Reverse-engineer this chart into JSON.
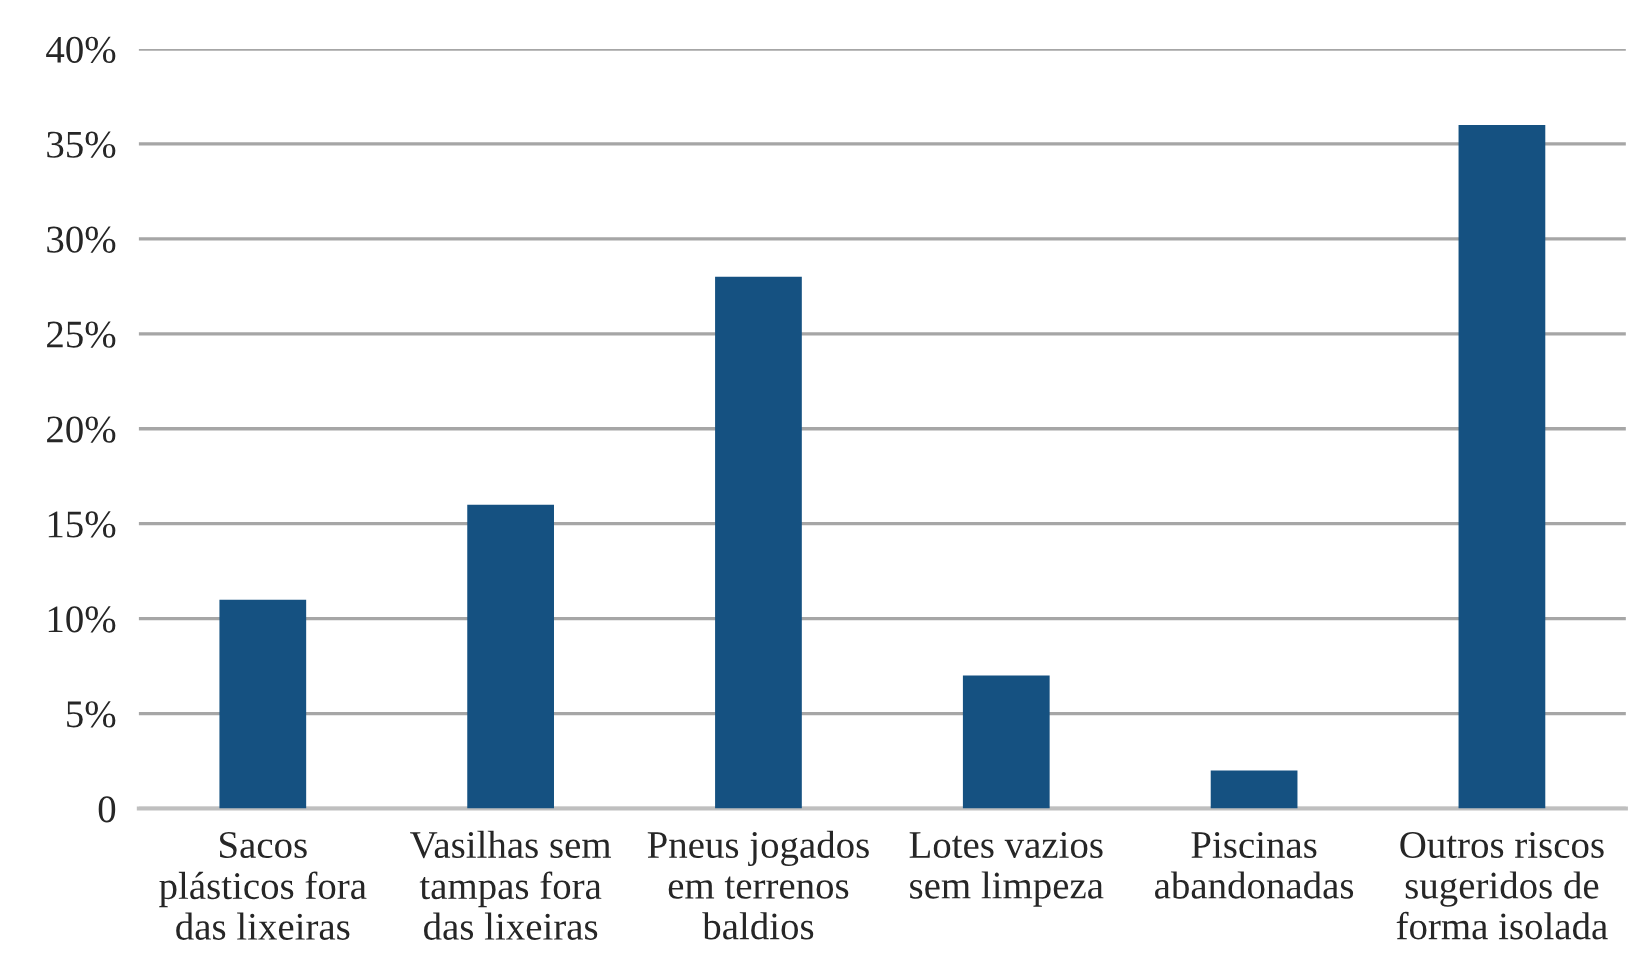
{
  "chart_data": {
    "type": "bar",
    "categories": [
      "Sacos\nplásticos fora\ndas lixeiras",
      "Vasilhas sem\ntampas fora\ndas lixeiras",
      "Pneus jogados\nem terrenos\nbaldios",
      "Lotes vazios\nsem limpeza",
      "Piscinas\nabandonadas",
      "Outros riscos\nsugeridos de\nforma isolada"
    ],
    "values": [
      11,
      16,
      28,
      7,
      2,
      36
    ],
    "color": "#155181",
    "ylim": [
      0,
      40
    ],
    "yticks": [
      {
        "value": 0,
        "label": "0"
      },
      {
        "value": 5,
        "label": "5%"
      },
      {
        "value": 10,
        "label": "10%"
      },
      {
        "value": 15,
        "label": "15%"
      },
      {
        "value": 20,
        "label": "20%"
      },
      {
        "value": 25,
        "label": "25%"
      },
      {
        "value": 30,
        "label": "30%"
      },
      {
        "value": 35,
        "label": "35%"
      },
      {
        "value": 40,
        "label": "40%"
      }
    ],
    "grid": "y"
  }
}
